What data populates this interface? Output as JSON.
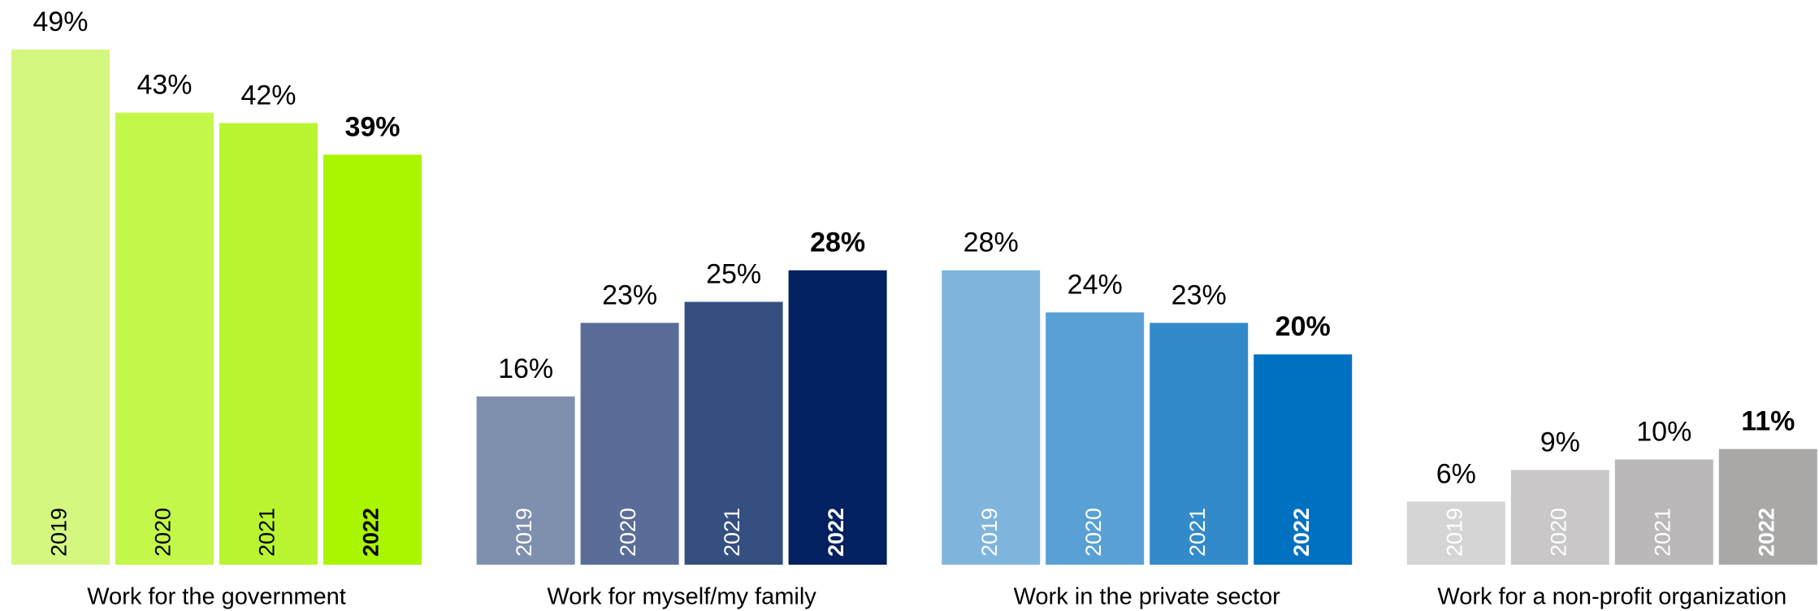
{
  "chart_data": {
    "type": "bar",
    "categories": [
      "Work for the government",
      "Work for myself/my family",
      "Work in the private sector",
      "Work for a non-profit organization"
    ],
    "series": [
      {
        "name": "2019",
        "values": [
          49,
          16,
          28,
          6
        ],
        "value_labels": [
          "49%",
          "16%",
          "28%",
          "6%"
        ],
        "colors": [
          "#d4f77f",
          "#7f8fae",
          "#7fb5dd",
          "#d6d5d5"
        ]
      },
      {
        "name": "2020",
        "values": [
          43,
          23,
          24,
          9
        ],
        "value_labels": [
          "43%",
          "23%",
          "24%",
          "9%"
        ],
        "colors": [
          "#c3f74a",
          "#5a6d98",
          "#59a0d5",
          "#c9c7c7"
        ]
      },
      {
        "name": "2021",
        "values": [
          42,
          25,
          23,
          10
        ],
        "value_labels": [
          "42%",
          "25%",
          "23%",
          "10%"
        ],
        "colors": [
          "#b8f530",
          "#344f80",
          "#338acb",
          "#bab8b8"
        ]
      },
      {
        "name": "2022",
        "values": [
          39,
          28,
          20,
          11
        ],
        "value_labels": [
          "39%",
          "28%",
          "20%",
          "11%"
        ],
        "colors": [
          "#aaf500",
          "#032060",
          "#0070c0",
          "#aaa7a7"
        ]
      }
    ],
    "ylim": [
      0,
      50
    ]
  }
}
